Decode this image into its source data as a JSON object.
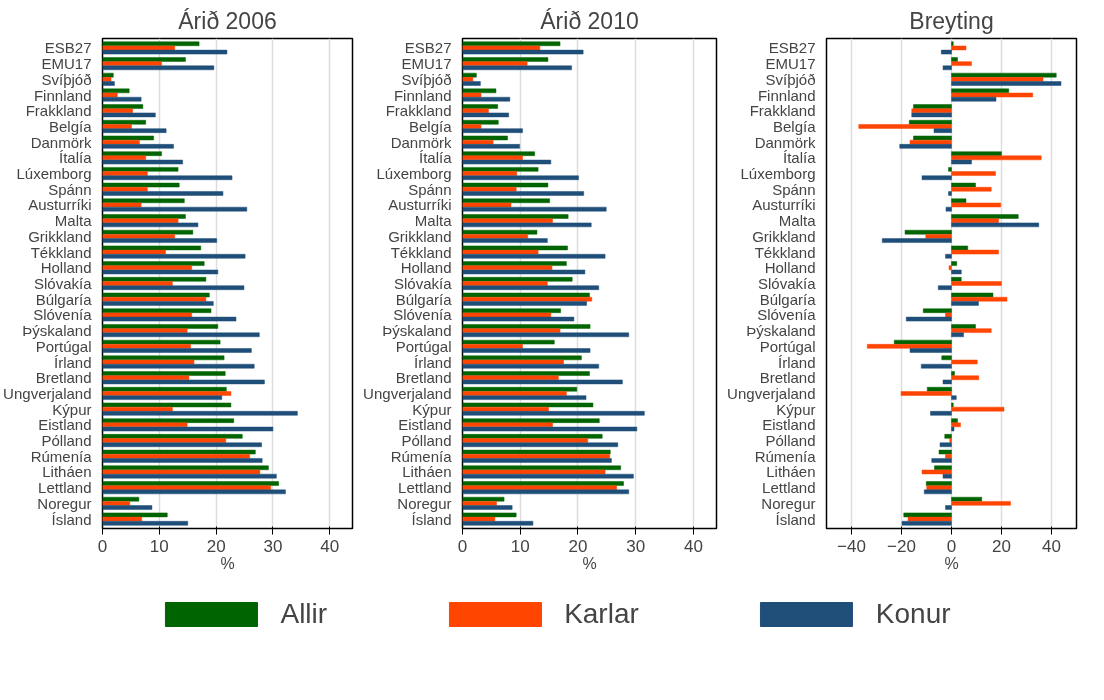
{
  "chart_data": [
    {
      "type": "bar",
      "orientation": "horizontal",
      "title": "Árið 2006",
      "xlabel": "%",
      "grid": "x",
      "categories": [
        "ESB27",
        "EMU17",
        "Svíþjóð",
        "Finnland",
        "Frakkland",
        "Belgía",
        "Danmörk",
        "Ítalía",
        "Lúxemborg",
        "Spánn",
        "Austurríki",
        "Malta",
        "Grikkland",
        "Tékkland",
        "Holland",
        "Slóvakía",
        "Búlgaría",
        "Slóvenía",
        "Þýskaland",
        "Portúgal",
        "Írland",
        "Bretland",
        "Ungverjaland",
        "Kýpur",
        "Eistland",
        "Pólland",
        "Rúmenía",
        "Litháen",
        "Lettland",
        "Noregur",
        "Ísland"
      ],
      "xlim": [
        0,
        44
      ],
      "xticks": [
        0,
        10,
        20,
        30,
        40
      ],
      "series": [
        {
          "color": "#006400",
          "values": [
            17.0,
            14.6,
            1.9,
            4.7,
            7.1,
            7.6,
            9.0,
            10.4,
            13.3,
            13.5,
            14.4,
            14.6,
            15.9,
            17.3,
            17.9,
            18.2,
            18.8,
            19.1,
            20.3,
            20.7,
            21.4,
            21.6,
            21.8,
            22.6,
            23.1,
            24.6,
            26.9,
            29.2,
            31.0,
            6.4,
            11.4
          ]
        },
        {
          "color": "#ff4500",
          "values": [
            12.7,
            10.4,
            1.5,
            2.6,
            5.3,
            5.1,
            6.5,
            7.6,
            7.9,
            7.9,
            6.8,
            13.3,
            12.7,
            11.1,
            15.7,
            12.3,
            18.2,
            15.7,
            14.9,
            15.5,
            16.1,
            15.2,
            22.6,
            12.3,
            14.9,
            21.7,
            25.9,
            27.7,
            29.6,
            4.8,
            6.9
          ]
        },
        {
          "color": "#1f4e79",
          "values": [
            21.9,
            19.6,
            2.1,
            6.8,
            9.3,
            11.2,
            12.5,
            14.1,
            22.8,
            21.2,
            25.4,
            16.8,
            20.1,
            25.1,
            20.3,
            24.9,
            19.5,
            23.5,
            27.6,
            26.2,
            26.7,
            28.5,
            21.0,
            34.3,
            30.0,
            28.0,
            28.1,
            30.6,
            32.2,
            8.7,
            15.0
          ]
        }
      ]
    },
    {
      "type": "bar",
      "orientation": "horizontal",
      "title": "Árið 2010",
      "xlabel": "%",
      "grid": "x",
      "legend": "bottom",
      "categories": [
        "ESB27",
        "EMU17",
        "Svíþjóð",
        "Finnland",
        "Frakkland",
        "Belgía",
        "Danmörk",
        "Ítalía",
        "Lúxemborg",
        "Spánn",
        "Austurríki",
        "Malta",
        "Grikkland",
        "Tékkland",
        "Holland",
        "Slóvakía",
        "Búlgaría",
        "Slóvenía",
        "Þýskaland",
        "Portúgal",
        "Írland",
        "Bretland",
        "Ungverjaland",
        "Kýpur",
        "Eistland",
        "Pólland",
        "Rúmenía",
        "Litháen",
        "Lettland",
        "Noregur",
        "Ísland"
      ],
      "xlim": [
        0,
        44
      ],
      "xticks": [
        0,
        10,
        20,
        30,
        40
      ],
      "series": [
        {
          "name": "Allir",
          "color": "#006400",
          "values": [
            16.9,
            14.8,
            2.4,
            5.8,
            6.1,
            6.2,
            7.8,
            12.5,
            13.1,
            14.8,
            15.1,
            18.3,
            12.9,
            18.2,
            18.0,
            19.0,
            22.0,
            17.0,
            22.1,
            15.9,
            20.6,
            22.0,
            19.8,
            22.6,
            23.7,
            24.2,
            25.6,
            27.4,
            27.9,
            7.2,
            9.3
          ]
        },
        {
          "name": "Karlar",
          "color": "#ff4500",
          "values": [
            13.4,
            11.2,
            1.8,
            3.2,
            4.5,
            3.2,
            5.3,
            10.4,
            9.4,
            9.3,
            8.4,
            15.6,
            11.3,
            13.1,
            15.5,
            14.7,
            22.4,
            15.3,
            16.9,
            10.4,
            17.5,
            16.6,
            18.0,
            14.9,
            15.6,
            21.7,
            25.5,
            24.7,
            26.7,
            5.9,
            5.6
          ]
        },
        {
          "name": "Konur",
          "color": "#1f4e79",
          "values": [
            20.9,
            18.9,
            3.1,
            8.2,
            8.0,
            10.4,
            9.9,
            15.3,
            20.1,
            21.0,
            24.9,
            22.3,
            14.7,
            24.7,
            21.2,
            23.6,
            21.5,
            19.3,
            28.8,
            22.1,
            23.6,
            27.7,
            21.4,
            31.5,
            30.2,
            26.9,
            25.8,
            29.6,
            28.8,
            8.6,
            12.2
          ]
        }
      ]
    },
    {
      "type": "bar",
      "orientation": "horizontal",
      "title": "Breyting",
      "xlabel": "%",
      "grid": "x",
      "categories": [
        "ESB27",
        "EMU17",
        "Svíþjóð",
        "Finnland",
        "Frakkland",
        "Belgía",
        "Danmörk",
        "Ítalía",
        "Lúxemborg",
        "Spánn",
        "Austurríki",
        "Malta",
        "Grikkland",
        "Tékkland",
        "Holland",
        "Slóvakía",
        "Búlgaría",
        "Slóvenía",
        "Þýskaland",
        "Portúgal",
        "Írland",
        "Bretland",
        "Ungverjaland",
        "Kýpur",
        "Eistland",
        "Pólland",
        "Rúmenía",
        "Litháen",
        "Lettland",
        "Noregur",
        "Ísland"
      ],
      "xlim": [
        -50,
        50
      ],
      "xticks": [
        -40,
        -20,
        0,
        20,
        40
      ],
      "series": [
        {
          "color": "#006400",
          "values": [
            0.7,
            2.4,
            41.9,
            22.9,
            -15.2,
            -16.9,
            -15.2,
            20.0,
            -1.2,
            9.6,
            5.8,
            26.7,
            -18.6,
            6.5,
            2.1,
            3.9,
            16.6,
            -11.3,
            9.6,
            -22.9,
            -3.9,
            1.2,
            -9.7,
            0.7,
            2.4,
            -2.7,
            -5.0,
            -6.8,
            -10.1,
            12.1,
            -19.1
          ]
        },
        {
          "color": "#ff4500",
          "values": [
            5.8,
            8.0,
            36.6,
            32.5,
            -15.9,
            -37.1,
            -16.6,
            35.9,
            17.6,
            15.9,
            19.7,
            18.8,
            -10.3,
            18.8,
            -1.0,
            20.0,
            22.2,
            -2.4,
            15.9,
            -33.7,
            10.3,
            10.9,
            -20.2,
            21.0,
            3.6,
            -0.7,
            -2.4,
            -11.8,
            -9.9,
            23.6,
            -17.4
          ]
        },
        {
          "color": "#1f4e79",
          "values": [
            -4.1,
            -3.4,
            43.8,
            17.8,
            -15.9,
            -7.0,
            -20.7,
            8.0,
            -11.8,
            -1.2,
            -2.2,
            34.9,
            -27.7,
            -2.4,
            3.9,
            -5.3,
            10.8,
            -18.1,
            4.8,
            -16.6,
            -12.1,
            -3.4,
            1.9,
            -8.4,
            1.0,
            -4.6,
            -7.9,
            -3.4,
            -10.9,
            -2.4,
            -19.8
          ]
        }
      ]
    }
  ]
}
